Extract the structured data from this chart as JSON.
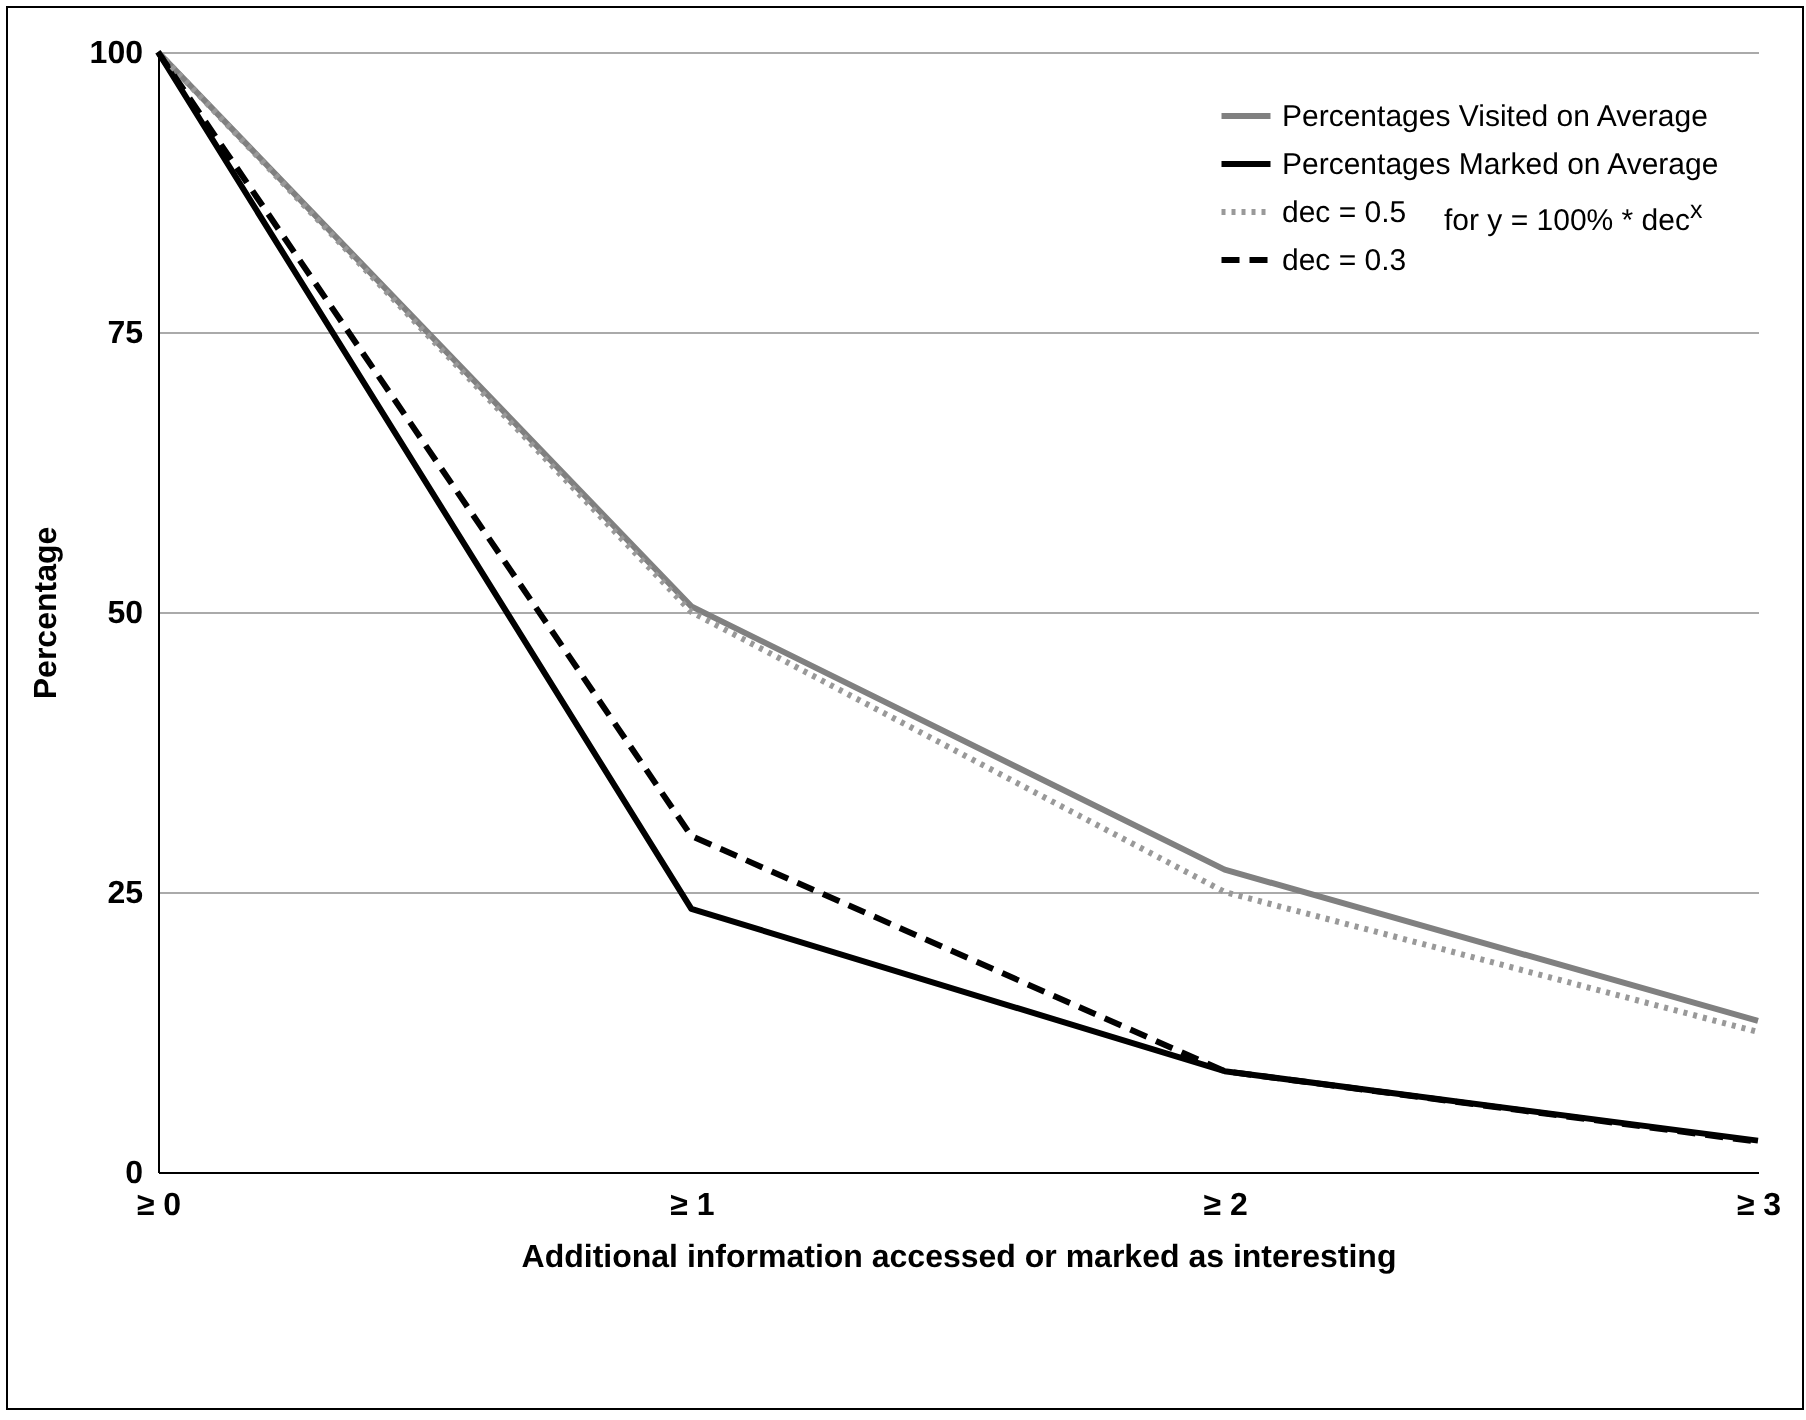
{
  "chart_data": {
    "type": "line",
    "xlabel": "Additional information accessed or marked as interesting",
    "ylabel": "Percentage",
    "categories": [
      "≥ 0",
      "≥ 1",
      "≥ 2",
      "≥ 3"
    ],
    "ylim": [
      0,
      100
    ],
    "yticks": [
      0,
      25,
      50,
      75,
      100
    ],
    "grid": "y",
    "legend": "top right",
    "marker": "none",
    "annotations": [
      "for y = 100% * dec$^{x}$"
    ],
    "series": [
      {
        "name": "Percentages Visited on Average",
        "color": "#808080",
        "line_style": "solid",
        "values": [
          100,
          50.5,
          27,
          13.5
        ]
      },
      {
        "name": "Percentages Marked on Average",
        "color": "#000000",
        "line_style": "solid",
        "values": [
          100,
          23.5,
          9,
          2.8
        ]
      },
      {
        "name": "dec = 0.5",
        "color": "#999999",
        "line_style": "dotted",
        "values": [
          100,
          50,
          25,
          12.5
        ]
      },
      {
        "name": "dec = 0.3",
        "color": "#000000",
        "line_style": "dashed",
        "values": [
          100,
          30,
          9,
          2.7
        ]
      }
    ]
  }
}
